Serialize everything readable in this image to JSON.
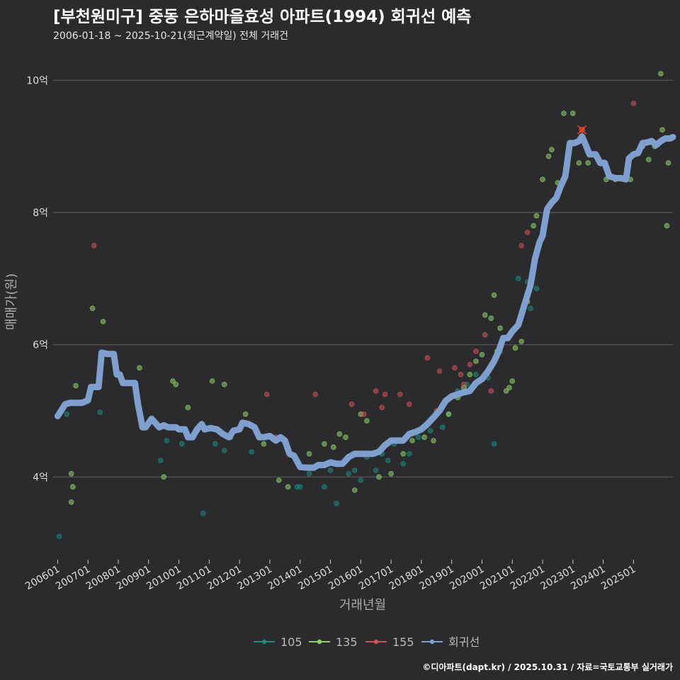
{
  "title": "[부천원미구] 중동 은하마을효성 아파트(1994) 회귀선 예측",
  "subtitle": "2006-01-18 ~ 2025-10-21(최근계약일) 전체 거래건",
  "footer": "©디아파트(dapt.kr) / 2025.10.31 / 자료=국토교통부 실거래가",
  "colors": {
    "background": "#2b2b2d",
    "grid": "#5a5a5e",
    "series_105": "#1e8a80",
    "series_135": "#8fd16a",
    "series_155": "#d2505a",
    "regression": "#7f9fcf",
    "highlight": "#e04a2f"
  },
  "chart_data": {
    "type": "scatter",
    "xlabel": "거래년월",
    "ylabel": "매매가(원)",
    "xlim": [
      2005.85,
      2026.3
    ],
    "ylim": [
      2.75,
      10.55
    ],
    "y_ticks": [
      {
        "value": 4,
        "label": "4억"
      },
      {
        "value": 6,
        "label": "6억"
      },
      {
        "value": 8,
        "label": "8억"
      },
      {
        "value": 10,
        "label": "10억"
      }
    ],
    "x_ticks": [
      {
        "value": 2006,
        "label": "200601"
      },
      {
        "value": 2007,
        "label": "200701"
      },
      {
        "value": 2008,
        "label": "200801"
      },
      {
        "value": 2009,
        "label": "200901"
      },
      {
        "value": 2010,
        "label": "201001"
      },
      {
        "value": 2011,
        "label": "201101"
      },
      {
        "value": 2012,
        "label": "201201"
      },
      {
        "value": 2013,
        "label": "201301"
      },
      {
        "value": 2014,
        "label": "201401"
      },
      {
        "value": 2015,
        "label": "201501"
      },
      {
        "value": 2016,
        "label": "201601"
      },
      {
        "value": 2017,
        "label": "201701"
      },
      {
        "value": 2018,
        "label": "201801"
      },
      {
        "value": 2019,
        "label": "201901"
      },
      {
        "value": 2020,
        "label": "202001"
      },
      {
        "value": 2021,
        "label": "202101"
      },
      {
        "value": 2022,
        "label": "202201"
      },
      {
        "value": 2023,
        "label": "202301"
      },
      {
        "value": 2024,
        "label": "202401"
      },
      {
        "value": 2025,
        "label": "202501"
      }
    ],
    "legend": [
      {
        "label": "105",
        "key": "series_105"
      },
      {
        "label": "135",
        "key": "series_135"
      },
      {
        "label": "155",
        "key": "series_155"
      },
      {
        "label": "회귀선",
        "key": "regression"
      }
    ],
    "series": [
      {
        "name": "105",
        "points": [
          [
            2006.05,
            3.1
          ],
          [
            2006.3,
            4.95
          ],
          [
            2007.4,
            4.98
          ],
          [
            2009.4,
            4.25
          ],
          [
            2009.6,
            4.55
          ],
          [
            2010.1,
            4.5
          ],
          [
            2010.8,
            3.45
          ],
          [
            2011.2,
            4.5
          ],
          [
            2011.5,
            4.4
          ],
          [
            2012.4,
            4.38
          ],
          [
            2013.9,
            3.85
          ],
          [
            2014.0,
            3.85
          ],
          [
            2014.3,
            4.05
          ],
          [
            2014.5,
            4.15
          ],
          [
            2014.8,
            3.85
          ],
          [
            2015.0,
            4.1
          ],
          [
            2015.2,
            3.6
          ],
          [
            2015.4,
            4.2
          ],
          [
            2015.6,
            4.05
          ],
          [
            2015.8,
            4.1
          ],
          [
            2016.0,
            3.95
          ],
          [
            2016.2,
            4.3
          ],
          [
            2016.5,
            4.1
          ],
          [
            2016.7,
            4.35
          ],
          [
            2016.9,
            4.25
          ],
          [
            2017.1,
            4.5
          ],
          [
            2017.4,
            4.2
          ],
          [
            2017.6,
            4.35
          ],
          [
            2017.9,
            4.6
          ],
          [
            2018.3,
            4.7
          ],
          [
            2018.7,
            4.75
          ],
          [
            2018.9,
            4.95
          ],
          [
            2019.2,
            5.3
          ],
          [
            2019.5,
            5.4
          ],
          [
            2019.8,
            5.55
          ],
          [
            2020.2,
            5.5
          ],
          [
            2020.4,
            4.5
          ],
          [
            2020.6,
            5.9
          ],
          [
            2021.2,
            7.0
          ],
          [
            2021.5,
            6.95
          ],
          [
            2021.6,
            6.55
          ],
          [
            2021.8,
            6.85
          ]
        ]
      },
      {
        "name": "135",
        "points": [
          [
            2006.45,
            4.05
          ],
          [
            2006.45,
            3.62
          ],
          [
            2006.6,
            5.38
          ],
          [
            2006.5,
            3.85
          ],
          [
            2007.15,
            6.55
          ],
          [
            2007.5,
            6.35
          ],
          [
            2008.2,
            5.42
          ],
          [
            2008.7,
            5.65
          ],
          [
            2009.5,
            4.0
          ],
          [
            2009.8,
            5.45
          ],
          [
            2009.9,
            5.4
          ],
          [
            2010.3,
            5.05
          ],
          [
            2010.6,
            4.7
          ],
          [
            2011.1,
            5.45
          ],
          [
            2011.5,
            5.4
          ],
          [
            2011.7,
            4.6
          ],
          [
            2012.2,
            4.95
          ],
          [
            2012.8,
            4.5
          ],
          [
            2013.3,
            3.95
          ],
          [
            2013.6,
            3.85
          ],
          [
            2014.3,
            4.35
          ],
          [
            2014.8,
            4.5
          ],
          [
            2015.1,
            4.45
          ],
          [
            2015.3,
            4.65
          ],
          [
            2015.5,
            4.6
          ],
          [
            2015.8,
            3.8
          ],
          [
            2016.0,
            4.95
          ],
          [
            2016.2,
            4.85
          ],
          [
            2016.6,
            4.0
          ],
          [
            2017.0,
            4.05
          ],
          [
            2017.4,
            4.35
          ],
          [
            2017.7,
            4.55
          ],
          [
            2018.1,
            4.6
          ],
          [
            2018.4,
            4.55
          ],
          [
            2018.9,
            4.95
          ],
          [
            2019.2,
            5.2
          ],
          [
            2019.4,
            5.35
          ],
          [
            2019.6,
            5.55
          ],
          [
            2019.8,
            5.75
          ],
          [
            2020.0,
            5.85
          ],
          [
            2020.1,
            6.45
          ],
          [
            2020.3,
            6.4
          ],
          [
            2020.4,
            6.75
          ],
          [
            2020.5,
            5.9
          ],
          [
            2020.6,
            6.25
          ],
          [
            2020.8,
            5.3
          ],
          [
            2020.9,
            5.35
          ],
          [
            2021.0,
            5.45
          ],
          [
            2021.1,
            5.95
          ],
          [
            2021.3,
            6.05
          ],
          [
            2021.5,
            6.65
          ],
          [
            2021.7,
            7.8
          ],
          [
            2021.8,
            7.95
          ],
          [
            2022.0,
            8.5
          ],
          [
            2022.2,
            8.85
          ],
          [
            2022.3,
            8.95
          ],
          [
            2022.5,
            8.45
          ],
          [
            2022.7,
            9.5
          ],
          [
            2023.0,
            9.5
          ],
          [
            2023.2,
            8.75
          ],
          [
            2023.5,
            8.75
          ],
          [
            2023.8,
            8.85
          ],
          [
            2024.1,
            8.5
          ],
          [
            2024.4,
            8.5
          ],
          [
            2024.7,
            8.5
          ],
          [
            2024.9,
            8.5
          ],
          [
            2025.3,
            9.0
          ],
          [
            2025.5,
            8.8
          ],
          [
            2025.7,
            9.0
          ],
          [
            2025.8,
            9.05
          ],
          [
            2025.9,
            10.1
          ],
          [
            2025.95,
            9.25
          ],
          [
            2026.1,
            7.8
          ],
          [
            2026.15,
            8.75
          ]
        ]
      },
      {
        "name": "155",
        "points": [
          [
            2007.2,
            7.5
          ],
          [
            2012.9,
            5.25
          ],
          [
            2013.2,
            4.6
          ],
          [
            2014.5,
            5.25
          ],
          [
            2015.7,
            5.1
          ],
          [
            2016.1,
            4.95
          ],
          [
            2016.5,
            5.3
          ],
          [
            2016.7,
            5.05
          ],
          [
            2016.8,
            5.25
          ],
          [
            2017.3,
            5.25
          ],
          [
            2017.6,
            5.1
          ],
          [
            2018.2,
            5.8
          ],
          [
            2018.5,
            5.0
          ],
          [
            2018.6,
            5.6
          ],
          [
            2019.1,
            5.65
          ],
          [
            2019.3,
            5.55
          ],
          [
            2019.4,
            5.4
          ],
          [
            2019.6,
            5.7
          ],
          [
            2019.8,
            5.9
          ],
          [
            2020.1,
            6.15
          ],
          [
            2020.3,
            5.3
          ],
          [
            2021.3,
            7.5
          ],
          [
            2021.5,
            7.7
          ],
          [
            2025.0,
            9.65
          ]
        ]
      }
    ],
    "regression": [
      [
        2006.0,
        4.92
      ],
      [
        2006.25,
        5.1
      ],
      [
        2006.4,
        5.12
      ],
      [
        2006.8,
        5.12
      ],
      [
        2007.0,
        5.16
      ],
      [
        2007.1,
        5.36
      ],
      [
        2007.35,
        5.36
      ],
      [
        2007.45,
        5.88
      ],
      [
        2007.65,
        5.86
      ],
      [
        2007.85,
        5.86
      ],
      [
        2007.95,
        5.55
      ],
      [
        2008.05,
        5.55
      ],
      [
        2008.15,
        5.42
      ],
      [
        2008.55,
        5.42
      ],
      [
        2008.65,
        5.1
      ],
      [
        2008.8,
        4.75
      ],
      [
        2008.9,
        4.75
      ],
      [
        2009.1,
        4.88
      ],
      [
        2009.35,
        4.75
      ],
      [
        2009.5,
        4.78
      ],
      [
        2009.65,
        4.75
      ],
      [
        2009.9,
        4.75
      ],
      [
        2010.0,
        4.72
      ],
      [
        2010.2,
        4.72
      ],
      [
        2010.3,
        4.6
      ],
      [
        2010.45,
        4.6
      ],
      [
        2010.6,
        4.72
      ],
      [
        2010.75,
        4.8
      ],
      [
        2010.85,
        4.72
      ],
      [
        2011.05,
        4.74
      ],
      [
        2011.25,
        4.72
      ],
      [
        2011.45,
        4.65
      ],
      [
        2011.65,
        4.6
      ],
      [
        2011.8,
        4.7
      ],
      [
        2012.0,
        4.72
      ],
      [
        2012.1,
        4.82
      ],
      [
        2012.3,
        4.8
      ],
      [
        2012.5,
        4.75
      ],
      [
        2012.65,
        4.6
      ],
      [
        2012.8,
        4.6
      ],
      [
        2013.0,
        4.62
      ],
      [
        2013.2,
        4.55
      ],
      [
        2013.35,
        4.6
      ],
      [
        2013.5,
        4.55
      ],
      [
        2013.65,
        4.35
      ],
      [
        2013.8,
        4.32
      ],
      [
        2014.0,
        4.15
      ],
      [
        2014.25,
        4.14
      ],
      [
        2014.45,
        4.14
      ],
      [
        2014.6,
        4.18
      ],
      [
        2014.8,
        4.18
      ],
      [
        2015.0,
        4.22
      ],
      [
        2015.2,
        4.2
      ],
      [
        2015.4,
        4.2
      ],
      [
        2015.6,
        4.3
      ],
      [
        2015.8,
        4.35
      ],
      [
        2016.0,
        4.35
      ],
      [
        2016.2,
        4.35
      ],
      [
        2016.4,
        4.35
      ],
      [
        2016.6,
        4.38
      ],
      [
        2016.8,
        4.48
      ],
      [
        2017.0,
        4.55
      ],
      [
        2017.2,
        4.55
      ],
      [
        2017.4,
        4.55
      ],
      [
        2017.6,
        4.65
      ],
      [
        2017.8,
        4.68
      ],
      [
        2018.0,
        4.72
      ],
      [
        2018.2,
        4.8
      ],
      [
        2018.4,
        4.9
      ],
      [
        2018.6,
        5.0
      ],
      [
        2018.8,
        5.15
      ],
      [
        2019.0,
        5.22
      ],
      [
        2019.2,
        5.25
      ],
      [
        2019.4,
        5.28
      ],
      [
        2019.6,
        5.3
      ],
      [
        2019.8,
        5.42
      ],
      [
        2020.0,
        5.48
      ],
      [
        2020.2,
        5.6
      ],
      [
        2020.4,
        5.75
      ],
      [
        2020.55,
        5.9
      ],
      [
        2020.7,
        6.1
      ],
      [
        2020.85,
        6.1
      ],
      [
        2021.0,
        6.2
      ],
      [
        2021.2,
        6.3
      ],
      [
        2021.4,
        6.6
      ],
      [
        2021.6,
        6.9
      ],
      [
        2021.75,
        7.3
      ],
      [
        2021.9,
        7.55
      ],
      [
        2022.0,
        7.65
      ],
      [
        2022.15,
        8.05
      ],
      [
        2022.3,
        8.15
      ],
      [
        2022.45,
        8.22
      ],
      [
        2022.6,
        8.4
      ],
      [
        2022.75,
        8.55
      ],
      [
        2022.9,
        9.05
      ],
      [
        2023.05,
        9.05
      ],
      [
        2023.2,
        9.08
      ],
      [
        2023.3,
        9.15
      ],
      [
        2023.4,
        9.05
      ],
      [
        2023.55,
        8.88
      ],
      [
        2023.75,
        8.88
      ],
      [
        2023.9,
        8.75
      ],
      [
        2024.05,
        8.75
      ],
      [
        2024.2,
        8.55
      ],
      [
        2024.4,
        8.52
      ],
      [
        2024.6,
        8.52
      ],
      [
        2024.75,
        8.5
      ],
      [
        2024.85,
        8.82
      ],
      [
        2025.0,
        8.88
      ],
      [
        2025.15,
        8.9
      ],
      [
        2025.3,
        9.05
      ],
      [
        2025.45,
        9.06
      ],
      [
        2025.6,
        9.08
      ],
      [
        2025.75,
        9.02
      ],
      [
        2025.9,
        9.08
      ],
      [
        2026.05,
        9.12
      ],
      [
        2026.2,
        9.12
      ],
      [
        2026.3,
        9.14
      ]
    ],
    "highlight_point": [
      2023.3,
      9.25
    ]
  }
}
